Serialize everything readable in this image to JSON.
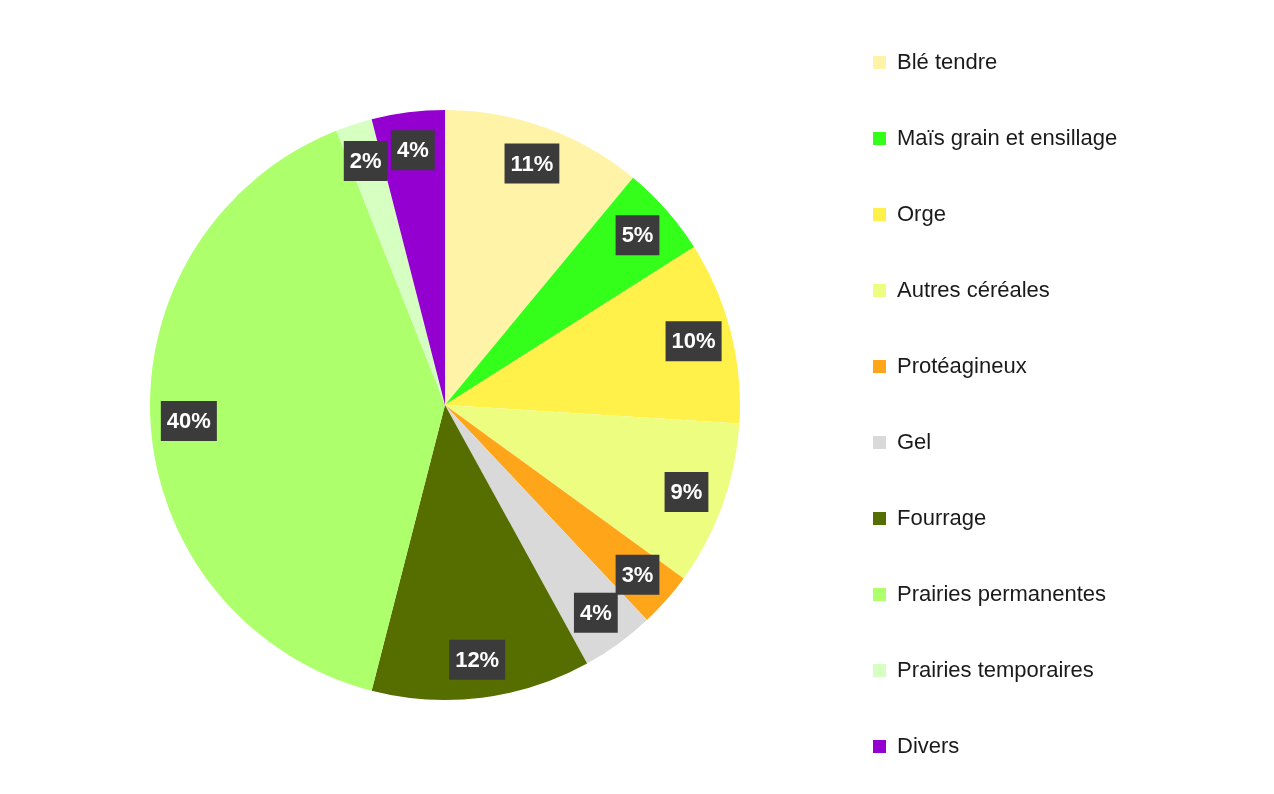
{
  "chart_data": {
    "type": "pie",
    "categories": [
      "Blé tendre",
      "Maïs grain et ensillage",
      "Orge",
      "Autres céréales",
      "Protéagineux",
      "Gel",
      "Fourrage",
      "Prairies permanentes",
      "Prairies temporaires",
      "Divers"
    ],
    "values": [
      11,
      5,
      10,
      9,
      3,
      4,
      12,
      40,
      2,
      4
    ],
    "value_labels": [
      "11%",
      "5%",
      "10%",
      "9%",
      "3%",
      "4%",
      "12%",
      "40%",
      "2%",
      "4%"
    ],
    "colors": [
      "#fff3a8",
      "#33ff1a",
      "#fff04a",
      "#ecfd80",
      "#ffa51a",
      "#d9d9d9",
      "#566e00",
      "#adff6b",
      "#d6ffc2",
      "#9400d0"
    ],
    "legend": "right"
  }
}
